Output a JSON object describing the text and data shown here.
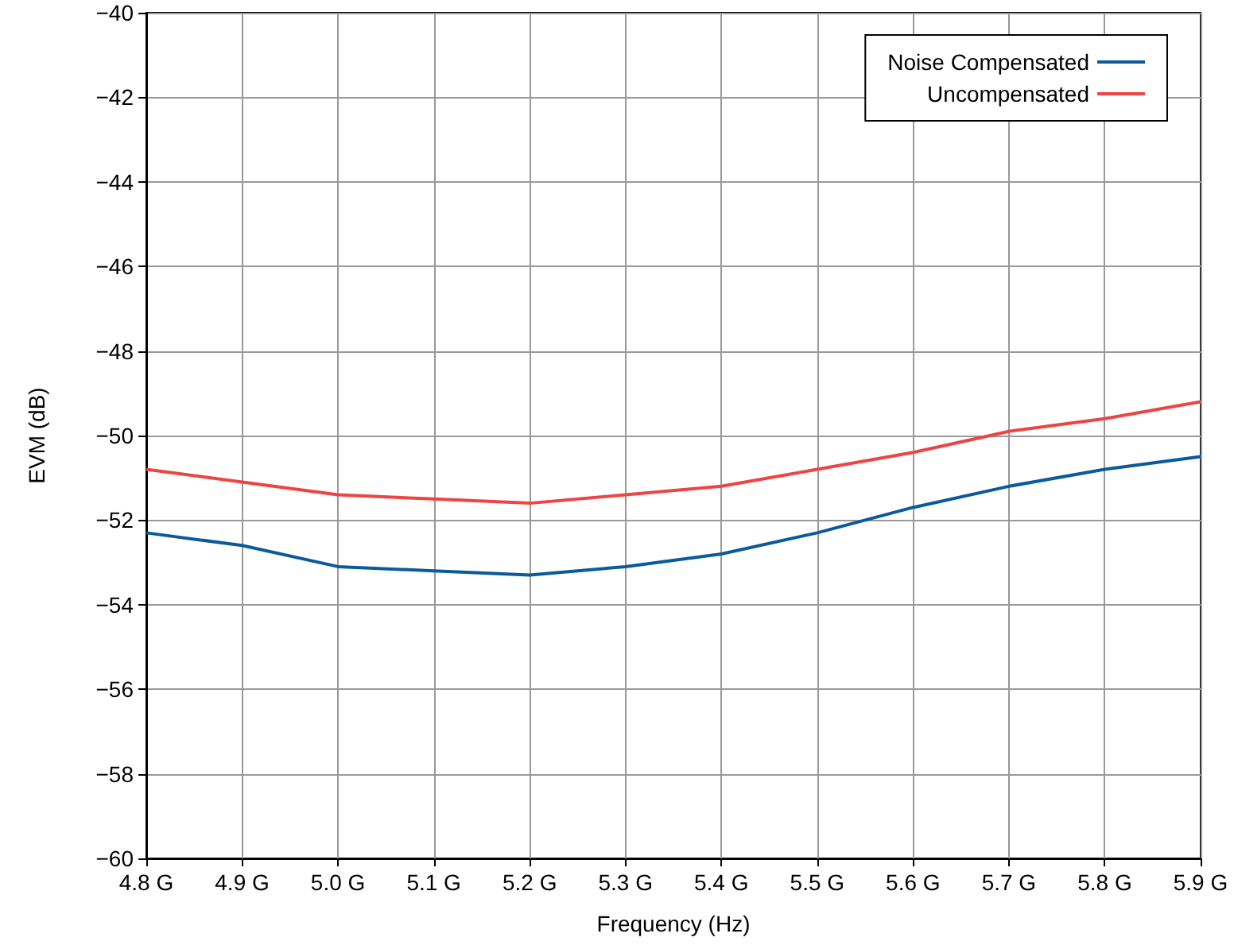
{
  "chart_data": {
    "type": "line",
    "xlabel": "Frequency (Hz)",
    "ylabel": "EVM (dB)",
    "x": [
      4.8,
      4.9,
      5.0,
      5.1,
      5.2,
      5.3,
      5.4,
      5.5,
      5.6,
      5.7,
      5.8,
      5.9
    ],
    "series": [
      {
        "name": "Noise Compensated",
        "color": "#0a5a9c",
        "values": [
          -52.3,
          -52.6,
          -53.1,
          -53.2,
          -53.3,
          -53.1,
          -52.8,
          -52.3,
          -51.7,
          -51.2,
          -50.8,
          -50.5
        ]
      },
      {
        "name": "Uncompensated",
        "color": "#ee4444",
        "values": [
          -50.8,
          -51.1,
          -51.4,
          -51.5,
          -51.6,
          -51.4,
          -51.2,
          -50.8,
          -50.4,
          -49.9,
          -49.6,
          -49.2
        ]
      }
    ],
    "xlim": [
      4.8,
      5.9
    ],
    "xticks": [
      {
        "value": 4.8,
        "label": "4.8 G"
      },
      {
        "value": 4.9,
        "label": "4.9 G"
      },
      {
        "value": 5.0,
        "label": "5.0 G"
      },
      {
        "value": 5.1,
        "label": "5.1 G"
      },
      {
        "value": 5.2,
        "label": "5.2 G"
      },
      {
        "value": 5.3,
        "label": "5.3 G"
      },
      {
        "value": 5.4,
        "label": "5.4 G"
      },
      {
        "value": 5.5,
        "label": "5.5 G"
      },
      {
        "value": 5.6,
        "label": "5.6 G"
      },
      {
        "value": 5.7,
        "label": "5.7 G"
      },
      {
        "value": 5.8,
        "label": "5.8 G"
      },
      {
        "value": 5.9,
        "label": "5.9 G"
      }
    ],
    "ylim": [
      -60,
      -40
    ],
    "yticks": [
      {
        "value": -60,
        "label": "−60"
      },
      {
        "value": -58,
        "label": "−58"
      },
      {
        "value": -56,
        "label": "−56"
      },
      {
        "value": -54,
        "label": "−54"
      },
      {
        "value": -52,
        "label": "−52"
      },
      {
        "value": -50,
        "label": "−50"
      },
      {
        "value": -48,
        "label": "−48"
      },
      {
        "value": -46,
        "label": "−46"
      },
      {
        "value": -44,
        "label": "−44"
      },
      {
        "value": -42,
        "label": "−42"
      },
      {
        "value": -40,
        "label": "−40"
      }
    ],
    "grid": true,
    "legend": "top right",
    "marker": "none",
    "line_style": "solid"
  }
}
